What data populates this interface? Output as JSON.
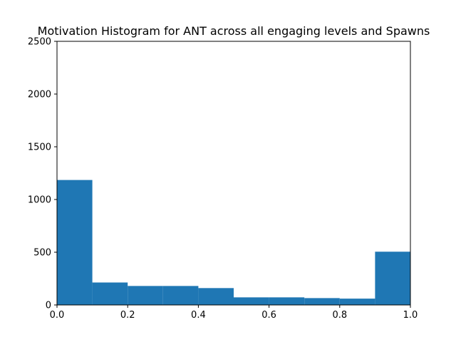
{
  "chart_data": {
    "type": "bar",
    "title": "Motivation Histogram for ANT across all engaging levels and Spawns",
    "xlabel": "",
    "ylabel": "",
    "xlim": [
      0.0,
      1.0
    ],
    "ylim": [
      0,
      2500
    ],
    "bin_edges": [
      0.0,
      0.1,
      0.2,
      0.3,
      0.4,
      0.5,
      0.6,
      0.7,
      0.8,
      0.9,
      1.0
    ],
    "values": [
      1185,
      213,
      180,
      180,
      160,
      72,
      72,
      65,
      60,
      505
    ],
    "bar_color": "#1f77b4",
    "x_ticks": [
      0.0,
      0.2,
      0.4,
      0.6,
      0.8,
      1.0
    ],
    "x_tick_labels": [
      "0.0",
      "0.2",
      "0.4",
      "0.6",
      "0.8",
      "1.0"
    ],
    "y_ticks": [
      0,
      500,
      1000,
      1500,
      2000,
      2500
    ],
    "y_tick_labels": [
      "0",
      "500",
      "1000",
      "1500",
      "2000",
      "2500"
    ],
    "grid": false
  }
}
